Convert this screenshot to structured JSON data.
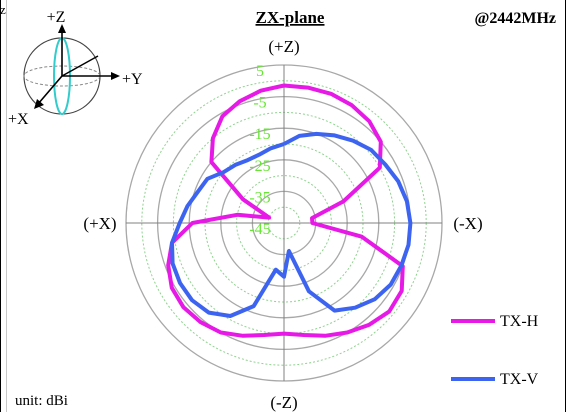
{
  "chart_data": {
    "type": "polar",
    "title": "ZX-plane",
    "frequency": "@2442MHz",
    "unit_label": "unit: dBi",
    "corner_glyph": "z",
    "direction_labels": {
      "top": "(+Z)",
      "bottom": "(-Z)",
      "left": "(+X)",
      "right": "(-X)"
    },
    "radial_ticks": [
      "5",
      "-5",
      "-15",
      "-25",
      "-35",
      "-45"
    ],
    "radial_range_dbi": [
      -45,
      5
    ],
    "theta_unit": "deg",
    "theta_convention": "0 = +Z (top), 90 = -X (right), 180 = -Z (bottom), 270 = +X (left)",
    "series": [
      {
        "name": "TX-H",
        "color": "#e619e6",
        "theta": [
          0,
          10,
          20,
          30,
          40,
          50,
          60,
          70,
          80,
          90,
          100,
          110,
          120,
          130,
          140,
          150,
          160,
          170,
          180,
          190,
          200,
          210,
          220,
          230,
          240,
          250,
          260,
          270,
          280,
          290,
          300,
          310,
          320,
          330,
          340,
          350
        ],
        "r": [
          -1.5,
          -1.5,
          -1.5,
          -2,
          -3,
          -5,
          -10,
          -25,
          -36,
          -36,
          -20,
          -5,
          -2,
          -1.5,
          -3,
          -5,
          -7,
          -9,
          -10,
          -9,
          -7,
          -5,
          -4,
          -3.5,
          -4,
          -6,
          -9,
          -16,
          -30,
          -40,
          -30,
          -15,
          -10,
          -6,
          -4,
          -2.5
        ]
      },
      {
        "name": "TX-V",
        "color": "#3c64f0",
        "theta": [
          0,
          10,
          20,
          30,
          40,
          50,
          60,
          70,
          80,
          90,
          100,
          110,
          120,
          130,
          140,
          150,
          160,
          170,
          180,
          190,
          200,
          210,
          220,
          230,
          240,
          250,
          260,
          270,
          280,
          290,
          300,
          310,
          320,
          330,
          340,
          350
        ],
        "r": [
          -20,
          -17,
          -15,
          -13,
          -11,
          -9,
          -8,
          -6.5,
          -5.5,
          -5,
          -5,
          -5.5,
          -6,
          -7.5,
          -10,
          -13,
          -22,
          -36,
          -28,
          -30,
          -17,
          -11,
          -8,
          -7,
          -7,
          -7.5,
          -9,
          -12,
          -14,
          -16,
          -17,
          -20,
          -21,
          -22,
          -22,
          -21
        ]
      }
    ],
    "legend": [
      {
        "name": "TX-H",
        "color": "#e619e6"
      },
      {
        "name": "TX-V",
        "color": "#3c64f0"
      }
    ],
    "legend_position": "bottom-right"
  },
  "axes_widget": {
    "z_label": "+Z",
    "y_label": "+Y",
    "x_label": "+X"
  },
  "colors": {
    "tick_text": "#66e633",
    "dotted_ring": "#8fd28f",
    "solid_ring": "#a8a8a8",
    "axis_line": "#808080"
  }
}
